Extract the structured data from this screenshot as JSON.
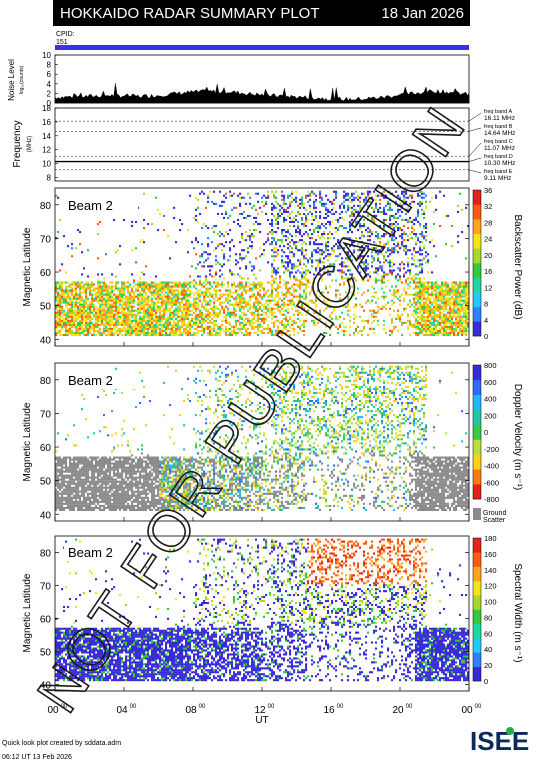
{
  "header": {
    "title": "HOKKAIDO RADAR SUMMARY PLOT",
    "date": "18 Jan 2026"
  },
  "cpid": {
    "label": "CPID:",
    "value": "151"
  },
  "noise_panel": {
    "ylabel": "Noise Level",
    "ylabel_units": "log₁₀(counts)"
  },
  "freq_panel": {
    "ylabel": "Frequency",
    "ylabel_units": "(MHz)",
    "bands": [
      {
        "name": "freq band A",
        "value": "16.11 MHz"
      },
      {
        "name": "freq band B",
        "value": "14.64 MHz"
      },
      {
        "name": "freq band C",
        "value": "11.07 MHz"
      },
      {
        "name": "freq band D",
        "value": "10.30 MHz"
      },
      {
        "name": "freq band E",
        "value": "9.11 MHz"
      }
    ]
  },
  "panels": [
    {
      "beam_label": "Beam  2",
      "ylabel": "Magnetic Latitude",
      "colorbar_label": "Backscatter Power (dB)",
      "colorbar_ticks": [
        "0",
        "4",
        "8",
        "12",
        "16",
        "20",
        "24",
        "28",
        "32",
        "36"
      ]
    },
    {
      "beam_label": "Beam  2",
      "ylabel": "Magnetic Latitude",
      "colorbar_label": "Doppler Velocity (m s⁻¹)",
      "colorbar_ticks": [
        "-800",
        "-600",
        "-400",
        "-200",
        "0",
        "200",
        "400",
        "600",
        "800"
      ],
      "ground_scatter_label_1": "Ground",
      "ground_scatter_label_2": "Scatter"
    },
    {
      "beam_label": "Beam  2",
      "ylabel": "Magnetic Latitude",
      "colorbar_label": "Spectral Width (m s⁻¹)",
      "colorbar_ticks": [
        "0",
        "20",
        "40",
        "60",
        "80",
        "100",
        "120",
        "140",
        "160",
        "180"
      ]
    }
  ],
  "xaxis": {
    "label": "UT",
    "ticks": [
      {
        "main": "00",
        "sup": "00"
      },
      {
        "main": "04",
        "sup": "00"
      },
      {
        "main": "08",
        "sup": "00"
      },
      {
        "main": "12",
        "sup": "00"
      },
      {
        "main": "16",
        "sup": "00"
      },
      {
        "main": "20",
        "sup": "00"
      },
      {
        "main": "00",
        "sup": "00"
      }
    ]
  },
  "watermark": "NOT FOR PUBLICATION",
  "footer": {
    "line1": "Quick look plot created by sddata.adm",
    "line2": "06:12 UT 13 Feb 2026"
  },
  "logo": {
    "text": "ISEE"
  },
  "colors": {
    "title_bg": "#000000",
    "cpid_bar": "#3b32e8",
    "power_scale": [
      "#3a2bd9",
      "#2f80ff",
      "#22c8ff",
      "#1fd8a0",
      "#34c83c",
      "#a6d82a",
      "#f4e21d",
      "#ffa51c",
      "#ff5a12",
      "#e2231a"
    ],
    "velocity_scale": [
      "#e2231a",
      "#ff7a12",
      "#ffd11d",
      "#b8e03c",
      "#3cc84a",
      "#20c8a8",
      "#22b8ff",
      "#2f6bff",
      "#3a2bd9"
    ],
    "ground_scatter": "#8c8c8c"
  },
  "chart_data": [
    {
      "type": "area",
      "title": "",
      "ylabel": "Noise Level",
      "ylim": [
        0,
        10
      ],
      "yticks": [
        0,
        2,
        4,
        6,
        8,
        10
      ],
      "x_hours": [
        0,
        1,
        2,
        3,
        4,
        5,
        6,
        7,
        8,
        9,
        10,
        11,
        12,
        13,
        14,
        15,
        16,
        17,
        18,
        19,
        20,
        21,
        22,
        23,
        24
      ],
      "values": [
        1.2,
        1.3,
        1.4,
        1.6,
        1.5,
        1.4,
        1.6,
        2.0,
        2.3,
        2.4,
        2.4,
        2.0,
        1.7,
        1.5,
        1.3,
        1.1,
        0.9,
        0.8,
        0.9,
        1.2,
        1.7,
        2.1,
        2.5,
        2.2,
        1.8
      ]
    },
    {
      "type": "line",
      "ylabel": "Frequency",
      "ylim": [
        7.5,
        18
      ],
      "yticks": [
        8,
        10,
        12,
        14,
        16,
        18
      ],
      "reference_lines": [
        16.11,
        14.64,
        11.07,
        10.3,
        9.11
      ],
      "series": [
        {
          "x_hours": [
            0,
            24
          ],
          "values": [
            10.3,
            10.3
          ]
        }
      ]
    },
    {
      "type": "heatmap",
      "ylabel": "Magnetic Latitude",
      "ylim": [
        38,
        85
      ],
      "yticks": [
        40,
        50,
        60,
        70,
        80
      ],
      "xlim_hours": [
        0,
        24
      ],
      "colorbar": {
        "label": "Backscatter Power (dB)",
        "range": [
          0,
          36
        ]
      }
    },
    {
      "type": "heatmap",
      "ylabel": "Magnetic Latitude",
      "ylim": [
        38,
        85
      ],
      "yticks": [
        40,
        50,
        60,
        70,
        80
      ],
      "xlim_hours": [
        0,
        24
      ],
      "colorbar": {
        "label": "Doppler Velocity (m s⁻¹)",
        "range": [
          -800,
          800
        ]
      }
    },
    {
      "type": "heatmap",
      "ylabel": "Magnetic Latitude",
      "ylim": [
        38,
        85
      ],
      "yticks": [
        40,
        50,
        60,
        70,
        80
      ],
      "xlim_hours": [
        0,
        24
      ],
      "colorbar": {
        "label": "Spectral Width (m s⁻¹)",
        "range": [
          0,
          180
        ]
      }
    }
  ]
}
